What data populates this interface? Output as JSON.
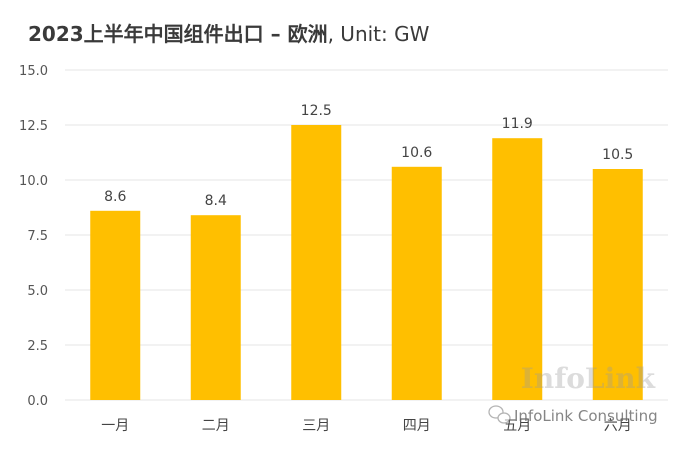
{
  "chart_data": {
    "type": "bar",
    "title_main": "2023上半年中国组件出口 – 欧洲",
    "title_unit": ", Unit: GW",
    "categories": [
      "一月",
      "二月",
      "三月",
      "四月",
      "五月",
      "六月"
    ],
    "values": [
      8.6,
      8.4,
      12.5,
      10.6,
      11.9,
      10.5
    ],
    "value_labels": [
      "8.6",
      "8.4",
      "12.5",
      "10.6",
      "11.9",
      "10.5"
    ],
    "yticks": [
      "0.0",
      "2.5",
      "5.0",
      "7.5",
      "10.0",
      "12.5",
      "15.0"
    ],
    "ytick_values": [
      0,
      2.5,
      5,
      7.5,
      10,
      12.5,
      15
    ],
    "ylim": [
      0,
      15
    ],
    "grid": true,
    "bar_color": "#FFBF00"
  },
  "watermark": {
    "logo": "InfoLink",
    "credit": "InfoLink Consulting"
  },
  "colors": {
    "grid": "#e6e6e6",
    "axis_text": "#555555",
    "label_text": "#444444"
  }
}
